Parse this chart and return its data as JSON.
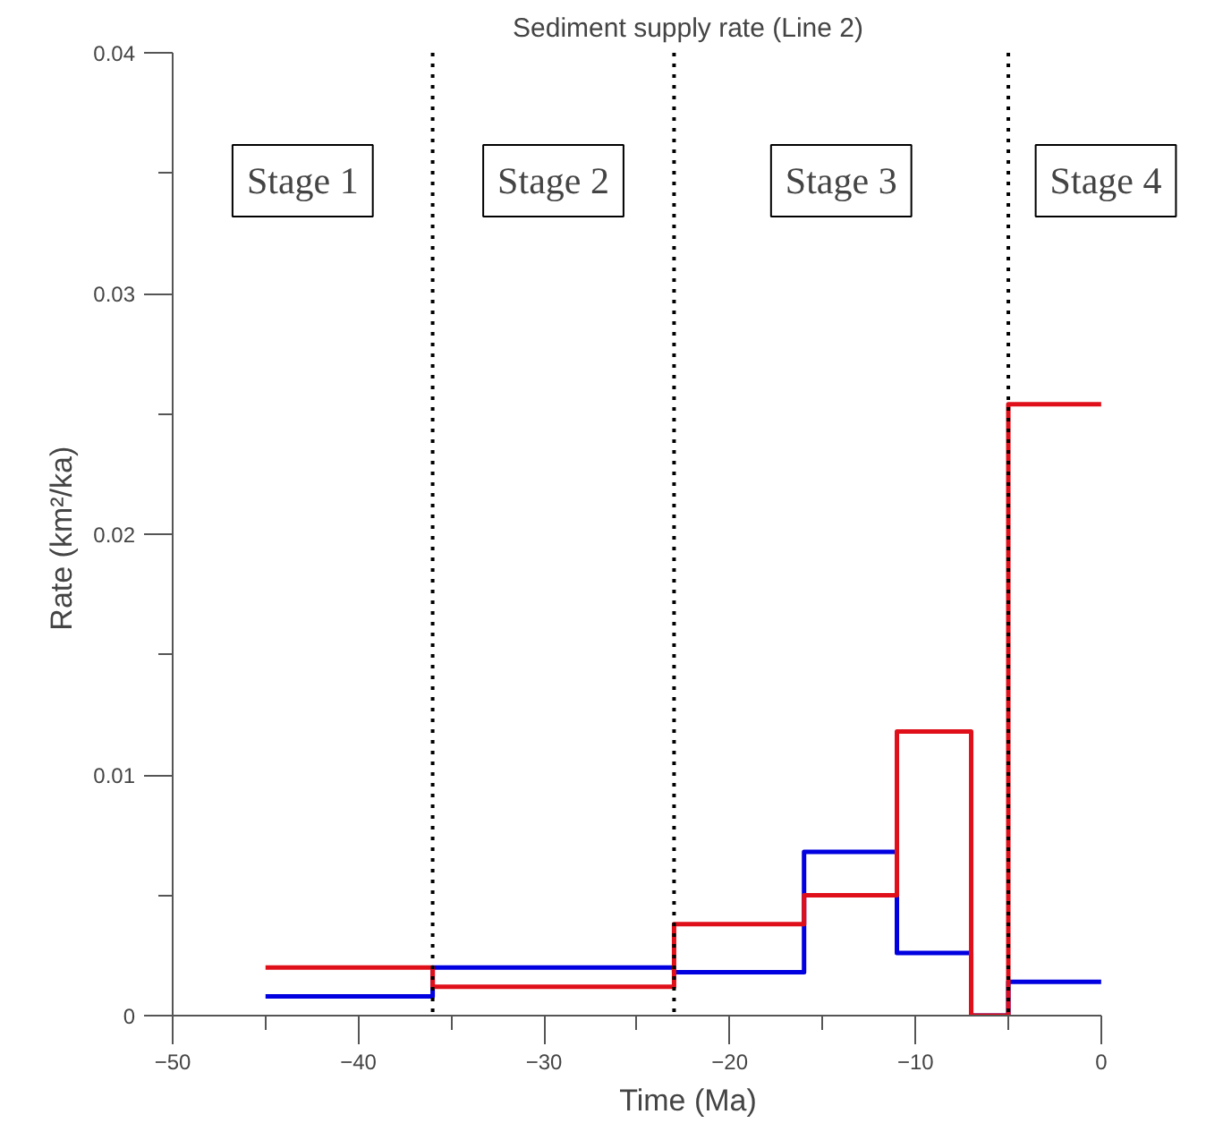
{
  "chart_data": {
    "type": "step",
    "title": "Sediment supply rate (Line 2)",
    "xlabel": "Time (Ma)",
    "ylabel": "Rate  (km²/ka)",
    "x": [
      -45,
      -36,
      -23,
      -16,
      -11,
      -7,
      -5,
      0
    ],
    "series": [
      {
        "color": "#0000e0",
        "values": [
          0.0008,
          0.002,
          0.0018,
          0.0068,
          0.0026,
          0,
          0.0014,
          0.0014
        ]
      },
      {
        "color": "#e0101a",
        "values": [
          0.002,
          0.0012,
          0.0038,
          0.005,
          0.0118,
          0,
          0.0254,
          0.0254
        ]
      }
    ],
    "xlim": [
      -50,
      0
    ],
    "ylim": [
      0,
      0.04
    ],
    "xticks": [
      -50,
      {
        "value": -45,
        "label": null
      },
      -40,
      {
        "value": -35,
        "label": null
      },
      -30,
      {
        "value": -25,
        "label": null
      },
      -20,
      {
        "value": -15,
        "label": null
      },
      -10,
      {
        "value": -5,
        "label": null
      },
      0
    ],
    "yticks": [
      0,
      {
        "value": 0.005,
        "label": null
      },
      0.01,
      {
        "value": 0.015,
        "label": null
      },
      0.02,
      {
        "value": 0.025,
        "label": null
      },
      0.03,
      {
        "value": 0.035,
        "label": null
      },
      0.04
    ],
    "ref_lines": [
      {
        "axis": "x",
        "value": -36,
        "line_style": "dotted",
        "color": "#000000"
      },
      {
        "axis": "x",
        "value": -23,
        "line_style": "dotted",
        "color": "#000000"
      },
      {
        "axis": "x",
        "value": -5,
        "line_style": "dotted",
        "color": "#000000"
      }
    ],
    "annotations": [
      "Stage 1",
      "Stage 2",
      "Stage 3",
      "Stage 4"
    ],
    "grid": false,
    "line_style": "solid"
  }
}
